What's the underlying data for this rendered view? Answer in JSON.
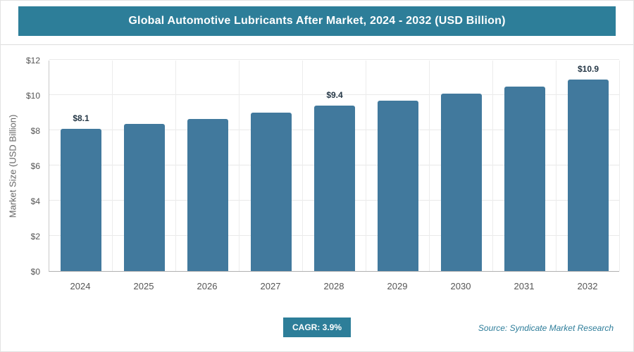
{
  "header": {
    "title": "Global Automotive Lubricants After Market, 2024 - 2032 (USD Billion)"
  },
  "colors": {
    "header_bg": "#2d7e99",
    "bar": "#41799d",
    "badge_bg": "#2d7e99",
    "source_text": "#2e7d9a"
  },
  "chart_data": {
    "type": "bar",
    "title": "Global Automotive Lubricants After Market, 2024 - 2032 (USD Billion)",
    "categories": [
      "2024",
      "2025",
      "2026",
      "2027",
      "2028",
      "2029",
      "2030",
      "2031",
      "2032"
    ],
    "values": [
      8.1,
      8.35,
      8.65,
      9.0,
      9.4,
      9.7,
      10.1,
      10.5,
      10.9
    ],
    "bar_labels": [
      "$8.1",
      "",
      "",
      "",
      "$9.4",
      "",
      "",
      "",
      "$10.9"
    ],
    "xlabel": "",
    "ylabel": "Market Size (USD Billion)",
    "ylim": [
      0,
      12
    ],
    "ytick_step": 2,
    "yticks": [
      "$0",
      "$2",
      "$4",
      "$6",
      "$8",
      "$10",
      "$12"
    ],
    "grid": true,
    "legend": "none",
    "bar_color": "#41799d"
  },
  "footer": {
    "cagr_label": "CAGR: 3.9%",
    "source": "Source: Syndicate Market Research"
  }
}
